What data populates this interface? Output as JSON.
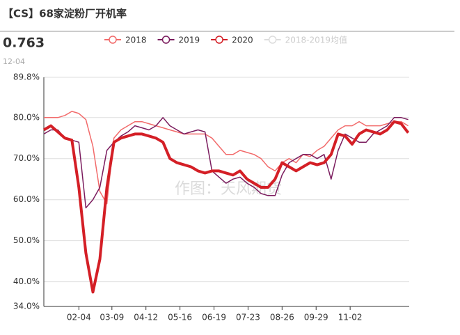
{
  "header": {
    "title": "【CS】68家淀粉厂开机率",
    "latest_value": "0.763",
    "latest_date": "12-04"
  },
  "chart_data": {
    "type": "line",
    "watermark": "作图：天风期货",
    "x": [
      0,
      7,
      14,
      21,
      28,
      35,
      42,
      49,
      56,
      63,
      70,
      77,
      84,
      91,
      98,
      105,
      112,
      119,
      126,
      133,
      140,
      147,
      154,
      161,
      168,
      175,
      182,
      189,
      196,
      203,
      210,
      217,
      224,
      231,
      238,
      245,
      252,
      259,
      266,
      273,
      280,
      287,
      294,
      301,
      308,
      315,
      322,
      329,
      336,
      343,
      350,
      357,
      364
    ],
    "xlim": [
      0,
      365
    ],
    "xticks": [
      {
        "value": 35,
        "label": "02-04"
      },
      {
        "value": 68,
        "label": "03-09"
      },
      {
        "value": 102,
        "label": "04-12"
      },
      {
        "value": 136,
        "label": "05-16"
      },
      {
        "value": 170,
        "label": "06-19"
      },
      {
        "value": 204,
        "label": "07-23"
      },
      {
        "value": 238,
        "label": "08-26"
      },
      {
        "value": 272,
        "label": "09-29"
      },
      {
        "value": 306,
        "label": "11-02"
      }
    ],
    "ylim": [
      34,
      89.8
    ],
    "yticks": [
      {
        "value": 34,
        "label": "34.0%"
      },
      {
        "value": 40,
        "label": "40.0%"
      },
      {
        "value": 50,
        "label": "50.0%"
      },
      {
        "value": 60,
        "label": "60.0%"
      },
      {
        "value": 70,
        "label": "70.0%"
      },
      {
        "value": 80,
        "label": "80.0%"
      },
      {
        "value": 89.8,
        "label": "89.8%"
      }
    ],
    "grid": true,
    "series": [
      {
        "name": "2018",
        "color": "#f26b6b",
        "width": 1.5,
        "values": [
          80,
          80,
          80,
          80.5,
          81.5,
          81,
          79.5,
          73,
          62,
          59,
          75,
          77,
          78,
          79,
          79,
          78.5,
          78,
          77.5,
          77,
          76.5,
          76,
          76,
          76,
          76,
          75,
          73,
          71,
          71,
          72,
          71.5,
          71,
          70,
          68,
          67,
          69,
          70,
          69,
          71,
          70.5,
          72,
          73,
          75,
          77,
          78,
          78,
          79,
          78,
          78,
          78,
          78.5,
          79,
          79,
          78
        ]
      },
      {
        "name": "2019",
        "color": "#7b1c5e",
        "width": 1.5,
        "values": [
          76,
          77,
          77,
          75,
          74.5,
          74,
          58,
          60,
          63,
          72,
          74,
          75.5,
          76.5,
          78,
          77.5,
          77,
          78,
          80,
          78,
          77,
          76,
          76.5,
          77,
          76.5,
          67,
          65.5,
          64,
          65,
          65.5,
          64,
          63,
          61.5,
          61,
          61,
          66,
          69,
          70,
          71,
          71,
          70,
          71,
          65,
          72,
          76,
          75,
          74,
          74,
          76,
          77,
          78,
          80,
          80,
          79.5
        ]
      },
      {
        "name": "2020",
        "color": "#d41f26",
        "width": 4,
        "values": [
          77,
          78,
          76.5,
          75,
          74.5,
          63,
          47,
          37.5,
          45.5,
          63,
          74,
          75,
          75.5,
          76,
          76,
          75.5,
          75,
          74,
          70,
          69,
          68.5,
          68,
          67,
          66.5,
          67,
          67,
          66.5,
          66,
          67,
          65,
          64,
          63,
          63,
          65,
          69,
          68,
          67,
          68,
          69,
          68.5,
          69,
          71,
          76,
          75.5,
          73.5,
          76,
          77,
          76.5,
          76,
          77,
          79,
          78.5,
          76.3
        ]
      },
      {
        "name": "2018-2019均值",
        "color": "#d0d0d0",
        "visible": false
      }
    ]
  }
}
